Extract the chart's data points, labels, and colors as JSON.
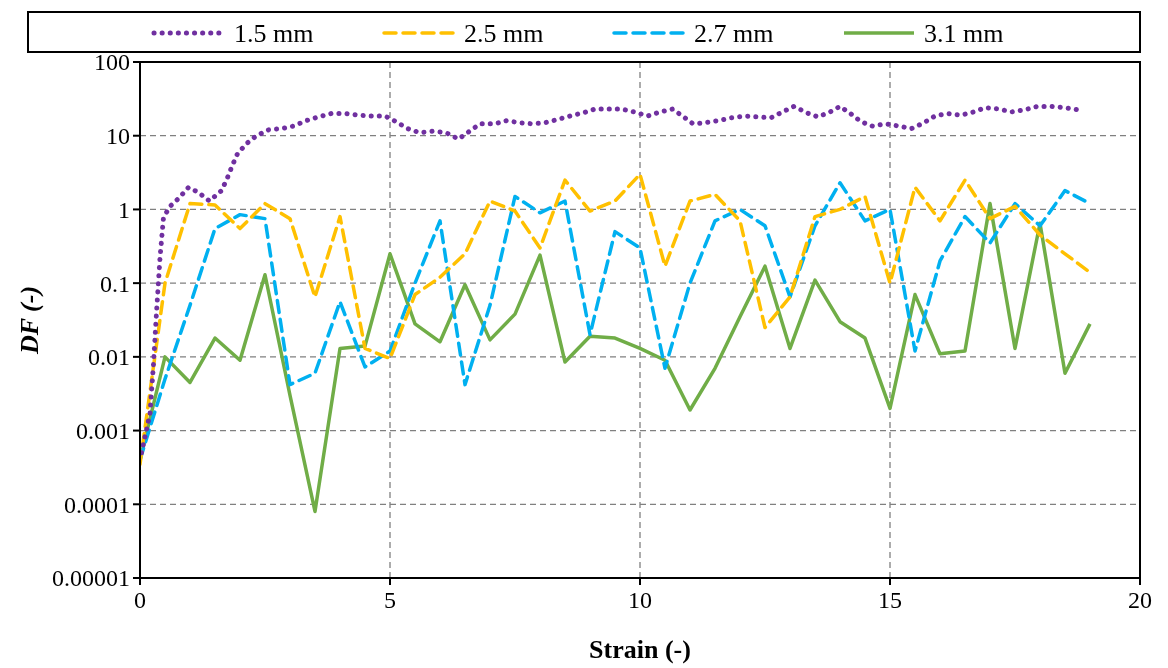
{
  "chart_data": {
    "type": "line",
    "xlabel": "Strain (-)",
    "ylabel": "DF (-)",
    "log": "y",
    "grid": true,
    "legend": "top",
    "marker": "none",
    "xlim": [
      0,
      20
    ],
    "xticks": [
      0,
      5,
      10,
      15,
      20
    ],
    "ylim": [
      1e-05,
      100
    ],
    "yticks": [
      {
        "value": 1e-05,
        "label": "0.00001"
      },
      {
        "value": 0.0001,
        "label": "0.0001"
      },
      {
        "value": 0.001,
        "label": "0.001"
      },
      {
        "value": 0.01,
        "label": "0.01"
      },
      {
        "value": 0.1,
        "label": "0.1"
      },
      1,
      10,
      100
    ],
    "series": [
      {
        "name": "1.5 mm",
        "color": "#7030a0",
        "line_style": "dotted",
        "x": [
          0.03,
          0.2,
          0.27,
          0.33,
          0.4,
          0.47,
          0.6,
          0.79,
          0.97,
          1.17,
          1.39,
          1.63,
          1.75,
          1.85,
          1.95,
          2.13,
          2.33,
          2.57,
          2.83,
          3.07,
          3.32,
          3.57,
          3.83,
          4.1,
          4.37,
          4.63,
          4.9,
          5.12,
          5.35,
          5.59,
          5.85,
          6.12,
          6.37,
          6.59,
          6.8,
          7.1,
          7.33,
          7.59,
          7.85,
          8.1,
          8.34,
          8.6,
          8.87,
          9.1,
          9.37,
          9.63,
          9.89,
          10.15,
          10.4,
          10.65,
          10.85,
          11.06,
          11.3,
          11.56,
          11.83,
          12.1,
          12.36,
          12.62,
          12.85,
          13.08,
          13.33,
          13.56,
          13.8,
          14.0,
          14.21,
          14.42,
          14.65,
          14.92,
          15.18,
          15.43,
          15.68,
          15.9,
          16.15,
          16.42,
          16.67,
          16.91,
          17.18,
          17.43,
          17.7,
          17.95,
          18.22,
          18.49,
          18.75
        ],
        "values": [
          0.0005,
          0.0017,
          0.008,
          0.04,
          0.22,
          0.78,
          1.1,
          1.45,
          1.99,
          1.7,
          1.3,
          1.8,
          2.7,
          4,
          5.7,
          7.8,
          10,
          12,
          12.5,
          13.5,
          16,
          18,
          20,
          20,
          19,
          18.5,
          18.5,
          15.5,
          12.5,
          11,
          11.5,
          11,
          9,
          11.5,
          14.5,
          14.5,
          16,
          15,
          14.5,
          15,
          16.5,
          18.5,
          20.5,
          23,
          23,
          23,
          21,
          18.5,
          21,
          23,
          18.5,
          14.5,
          15,
          16,
          17.5,
          18.5,
          18,
          17.5,
          21,
          25,
          20.5,
          18,
          21,
          25,
          20,
          15.5,
          13.5,
          14.5,
          13.5,
          12.5,
          15,
          18.5,
          20,
          19,
          21,
          24,
          23,
          21,
          22.5,
          25,
          25,
          24,
          22.5
        ]
      },
      {
        "name": "2.5 mm",
        "color": "#ffc000",
        "line_style": "dashed",
        "x": [
          0,
          0.5,
          1,
          1.5,
          2,
          2.5,
          3,
          3.5,
          4,
          4.5,
          5,
          5.5,
          6,
          6.5,
          7,
          7.5,
          8,
          8.5,
          9,
          9.5,
          10,
          10.5,
          11,
          11.5,
          12,
          12.5,
          13,
          13.5,
          14,
          14.5,
          15,
          15.5,
          16,
          16.5,
          17,
          17.5,
          18,
          18.5,
          19
        ],
        "values": [
          0.00035,
          0.1,
          1.2,
          1.15,
          0.55,
          1.2,
          0.75,
          0.065,
          0.8,
          0.013,
          0.0095,
          0.07,
          0.12,
          0.25,
          1.3,
          0.95,
          0.3,
          2.5,
          0.95,
          1.3,
          3.0,
          0.17,
          1.3,
          1.6,
          0.7,
          0.025,
          0.065,
          0.8,
          1.0,
          1.5,
          0.1,
          2.0,
          0.7,
          2.5,
          0.75,
          1.1,
          0.45,
          0.25,
          0.14
        ]
      },
      {
        "name": "2.7 mm",
        "color": "#00b0f0",
        "line_style": "dashed",
        "x": [
          0,
          0.5,
          1,
          1.5,
          2,
          2.5,
          3,
          3.5,
          4,
          4.5,
          5,
          5.5,
          6,
          6.5,
          7,
          7.5,
          8,
          8.5,
          9,
          9.5,
          10,
          10.5,
          11,
          11.5,
          12,
          12.5,
          13,
          13.5,
          14,
          14.5,
          15,
          15.5,
          16,
          16.5,
          17,
          17.5,
          18,
          18.5,
          19
        ],
        "values": [
          0.0004,
          0.005,
          0.05,
          0.55,
          0.85,
          0.75,
          0.0042,
          0.006,
          0.056,
          0.0073,
          0.012,
          0.1,
          0.7,
          0.0042,
          0.05,
          1.5,
          0.9,
          1.3,
          0.02,
          0.5,
          0.3,
          0.007,
          0.1,
          0.7,
          1.0,
          0.6,
          0.065,
          0.6,
          2.3,
          0.7,
          1.0,
          0.012,
          0.2,
          0.8,
          0.35,
          1.2,
          0.6,
          1.8,
          1.2
        ]
      },
      {
        "name": "3.1 mm",
        "color": "#70ad47",
        "line_style": "solid",
        "x": [
          0,
          0.5,
          1,
          1.5,
          2,
          2.5,
          3,
          3.5,
          4,
          4.5,
          5,
          5.5,
          6,
          6.5,
          7,
          7.5,
          8,
          8.5,
          9,
          9.5,
          10,
          10.5,
          11,
          11.5,
          12,
          12.5,
          13,
          13.5,
          14,
          14.5,
          15,
          15.5,
          16,
          16.5,
          17,
          17.5,
          18,
          18.5,
          19
        ],
        "values": [
          0.0004,
          0.01,
          0.0045,
          0.018,
          0.009,
          0.13,
          0.003,
          8e-05,
          0.013,
          0.014,
          0.25,
          0.028,
          0.016,
          0.095,
          0.017,
          0.038,
          0.24,
          0.0085,
          0.019,
          0.018,
          0.013,
          0.009,
          0.0019,
          0.007,
          0.035,
          0.17,
          0.013,
          0.11,
          0.03,
          0.018,
          0.002,
          0.07,
          0.011,
          0.012,
          1.2,
          0.013,
          0.65,
          0.006,
          0.028
        ]
      }
    ]
  }
}
